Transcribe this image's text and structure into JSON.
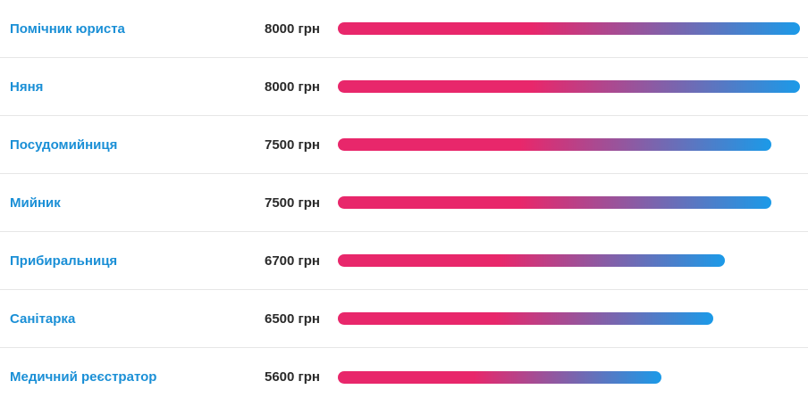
{
  "currency": "грн",
  "colors": {
    "label": "#1a8fd6",
    "value": "#2a2a2a",
    "bar_start": "#e8276b",
    "bar_end": "#1b9ae8",
    "divider": "#e6e6e6"
  },
  "chart_data": {
    "type": "bar",
    "orientation": "horizontal",
    "categories": [
      "Помічник юриста",
      "Няня",
      "Посудомийниця",
      "Мийник",
      "Прибиральниця",
      "Санітарка",
      "Медичний реєстратор"
    ],
    "values": [
      8000,
      8000,
      7500,
      7500,
      6700,
      6500,
      5600
    ],
    "value_labels": [
      "8000 грн",
      "8000 грн",
      "7500 грн",
      "7500 грн",
      "6700 грн",
      "6500 грн",
      "5600 грн"
    ],
    "xlim": [
      0,
      8000
    ]
  }
}
